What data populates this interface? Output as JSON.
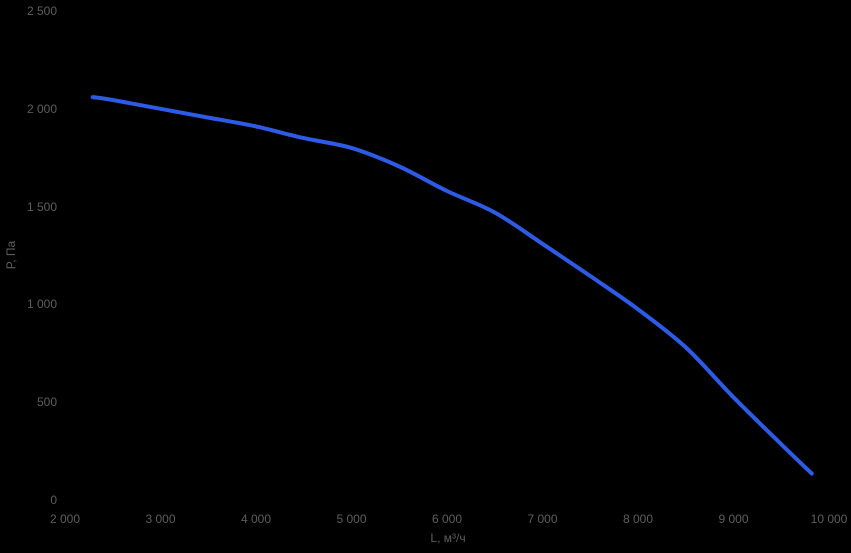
{
  "chart_data": {
    "type": "line",
    "title": "",
    "xlabel": "L, м³/ч",
    "ylabel": "P, Па",
    "x": [
      2290,
      2500,
      3000,
      3500,
      4000,
      4500,
      5000,
      5500,
      6000,
      6500,
      7000,
      7500,
      8000,
      8500,
      9000,
      9500,
      9820
    ],
    "y": [
      2060,
      2045,
      2000,
      1955,
      1910,
      1850,
      1800,
      1705,
      1580,
      1470,
      1310,
      1145,
      975,
      780,
      525,
      285,
      135
    ],
    "xlim": [
      2000,
      10000
    ],
    "ylim": [
      0,
      2500
    ],
    "x_ticks": [
      2000,
      3000,
      4000,
      5000,
      6000,
      7000,
      8000,
      9000,
      10000
    ],
    "x_tick_labels": [
      "2 000",
      "3 000",
      "4 000",
      "5 000",
      "6 000",
      "7 000",
      "8 000",
      "9 000",
      "10 000"
    ],
    "y_ticks": [
      0,
      500,
      1000,
      1500,
      2000,
      2500
    ],
    "y_tick_labels": [
      "0",
      "500",
      "1 000",
      "1 500",
      "2 000",
      "2 500"
    ],
    "grid": false,
    "legend": false,
    "colors": {
      "background": "#000000",
      "curve": "#2e5be6",
      "text": "#5e5e5e"
    }
  }
}
